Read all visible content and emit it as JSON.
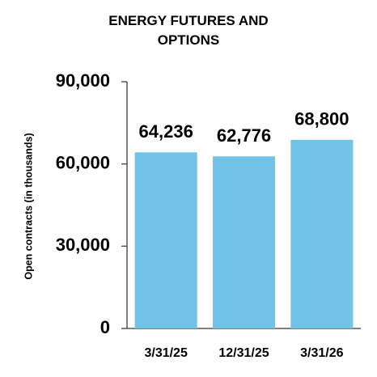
{
  "chart_data": {
    "type": "bar",
    "title": "ENERGY FUTURES AND OPTIONS",
    "y_label": "Open contracts (in thousands)",
    "categories": [
      "3/31/25",
      "12/31/25",
      "3/31/26"
    ],
    "values": [
      64236,
      62776,
      68800
    ],
    "value_labels": [
      "64,236",
      "62,776",
      "68,800"
    ],
    "color": "#71c4e8",
    "ylim": [
      0,
      90000
    ],
    "yticks": [
      0,
      {
        "value": 30000,
        "label": "30,000"
      },
      {
        "value": 60000,
        "label": "60,000"
      },
      {
        "value": 90000,
        "label": "90,000"
      }
    ]
  }
}
